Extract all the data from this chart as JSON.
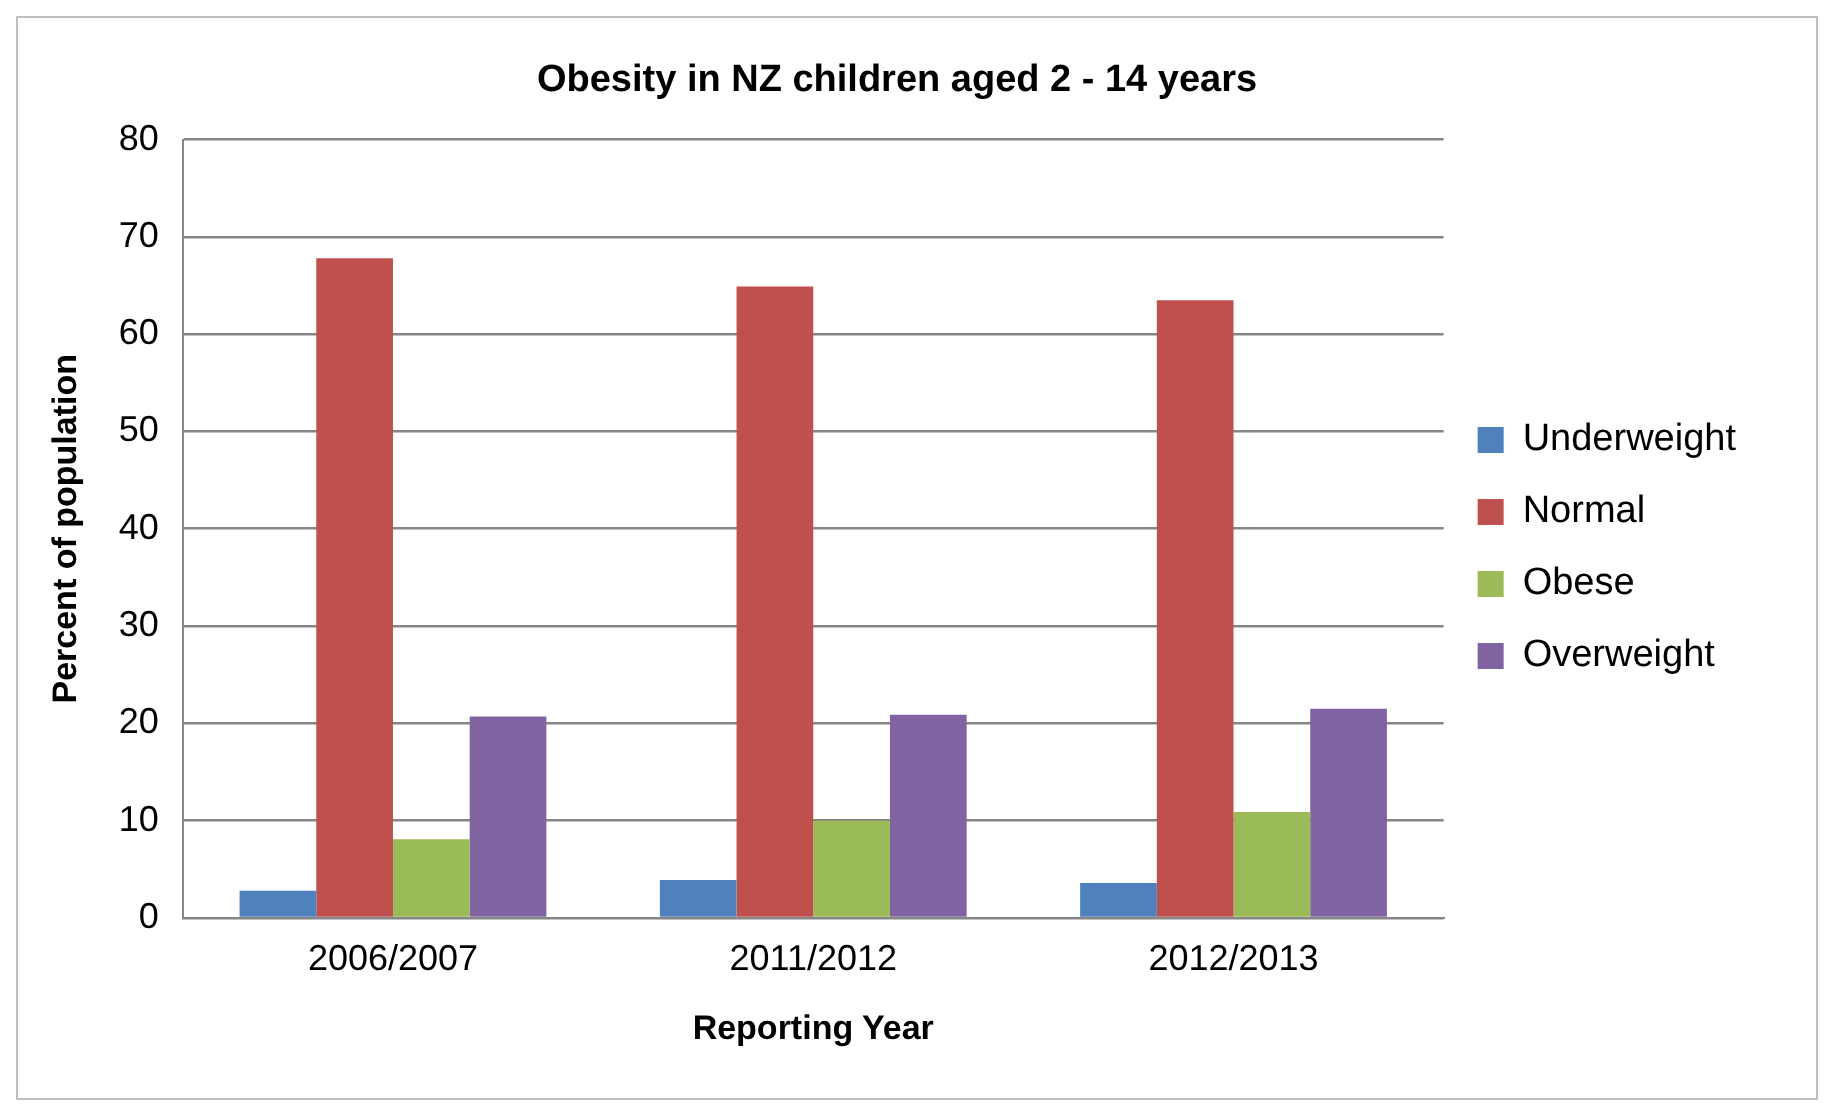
{
  "chart_data": {
    "type": "bar",
    "title": "Obesity in NZ children aged 2 - 14 years",
    "xlabel": "Reporting Year",
    "ylabel": "Percent of population",
    "categories": [
      "2006/2007",
      "2011/2012",
      "2012/2013"
    ],
    "series": [
      {
        "name": "Underweight",
        "color": "#4f81bd",
        "values": [
          2.8,
          3.9,
          3.6
        ]
      },
      {
        "name": "Normal",
        "color": "#c0504d",
        "values": [
          67.8,
          64.9,
          63.5
        ]
      },
      {
        "name": "Obese",
        "color": "#9bbb59",
        "values": [
          8.1,
          10.0,
          10.9
        ]
      },
      {
        "name": "Overweight",
        "color": "#8064a2",
        "values": [
          20.7,
          20.9,
          21.5
        ]
      }
    ],
    "ylim": [
      0,
      80
    ],
    "yticks": [
      0,
      10,
      20,
      30,
      40,
      50,
      60,
      70,
      80
    ],
    "grid": "y",
    "legend": "right"
  }
}
